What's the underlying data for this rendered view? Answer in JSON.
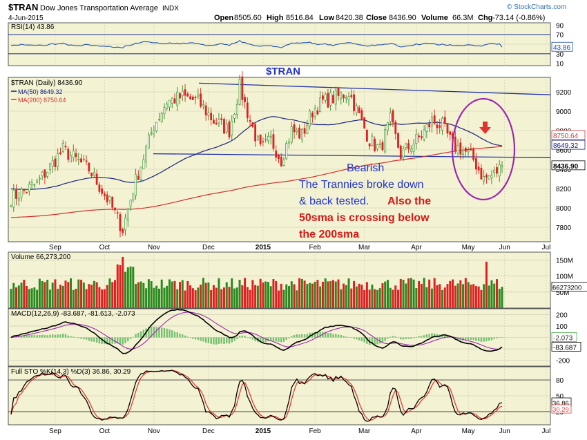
{
  "header": {
    "symbol": "$TRAN",
    "name": "Dow Jones Transportation Average",
    "exchange": "INDX",
    "date": "4-Jun-2015",
    "open_label": "Open",
    "open": "8505.60",
    "high_label": "High",
    "high": "8516.84",
    "low_label": "Low",
    "low": "8420.38",
    "close_label": "Close",
    "close": "8436.90",
    "volume_label": "Volume",
    "volume": "66.3M",
    "chg_label": "Chg",
    "chg": "-73.14 (-0.86%)",
    "watermark": "© StockCharts.com"
  },
  "colors": {
    "up": "#2a8a1f",
    "down": "#e02020",
    "ma50": "#1a237e",
    "ma200": "#d32f2f",
    "trend": "#1f2fa8",
    "rsi": "#1e4fb0",
    "macd": "#000000",
    "signal": "#9c27b0",
    "hist": "#4caf50",
    "stoK": "#000000",
    "stoD": "#e53935",
    "annot_blue": "#2233cc",
    "annot_red": "#d61a1a",
    "ellipse": "#9c27b0",
    "panel_bg": "#f3f2d2",
    "grid": "#c8c8b0"
  },
  "rsi_panel": {
    "legend": "RSI(14) 43.86",
    "axis_ticks": [
      "90",
      "70",
      "50",
      "30",
      "10"
    ],
    "current_tag": "43.86"
  },
  "price_panel": {
    "legend_symbol": "$TRAN (Daily) 8436.90",
    "legend_ma50": "MA(50) 8649.32",
    "legend_ma200": "MA(200) 8750.64",
    "title_annotation": "$TRAN",
    "axis_ticks": [
      "9200",
      "9000",
      "8800",
      "8600",
      "8400",
      "8200",
      "8000",
      "7800"
    ],
    "tags": {
      "ma200": "8750.64",
      "ma50": "8649.32",
      "close": "8436.90"
    }
  },
  "annotation": {
    "line1": "Bearish",
    "line2": "The Trannies broke down",
    "line3a": "& back tested. ",
    "line3b": "Also the",
    "line4": "50sma is crossing below",
    "line5": "the 200sma"
  },
  "volume_panel": {
    "legend": "Volume 66,273,200",
    "axis_ticks": [
      "150M",
      "100M",
      "50M"
    ],
    "current_tag": "66273200"
  },
  "macd_panel": {
    "legend": "MACD(12,26,9) -83.687, -81.613, -2.073",
    "axis_ticks": [
      "200",
      "100",
      "0",
      "-100",
      "-200"
    ],
    "tags": {
      "hist": "-2.073",
      "macd": "-83.687"
    }
  },
  "sto_panel": {
    "legend": "Full STO %K(14,3) %D(3) 36.86, 30.29",
    "axis_ticks": [
      "80",
      "50",
      "20"
    ],
    "tags": {
      "k": "36.86",
      "d": "30.29"
    }
  },
  "x_axis": {
    "price_labels": [
      "Sep",
      "Oct",
      "Nov",
      "Dec",
      "2015",
      "Feb",
      "Mar",
      "Apr",
      "May",
      "Jun",
      "Jul"
    ],
    "bottom_labels": [
      "Sep",
      "Oct",
      "Nov",
      "Dec",
      "2015",
      "Feb",
      "Mar",
      "Apr",
      "May",
      "Jun",
      "Jul"
    ]
  },
  "chart_data": {
    "type": "line",
    "title": "$TRAN Dow Jones Transportation Average INDX",
    "price_series_monthly_approx": [
      {
        "label": "Sep",
        "value": 8450
      },
      {
        "label": "Oct",
        "value": 7700
      },
      {
        "label": "Nov",
        "value": 8800
      },
      {
        "label": "Dec",
        "value": 9050
      },
      {
        "label": "2015",
        "value": 8650
      },
      {
        "label": "Feb",
        "value": 8900
      },
      {
        "label": "Mar",
        "value": 9150
      },
      {
        "label": "Apr",
        "value": 8650
      },
      {
        "label": "May",
        "value": 8850
      },
      {
        "label": "Jun",
        "value": 8436.9
      }
    ],
    "price_range": [
      7650,
      9350
    ],
    "ma50_current": 8649.32,
    "ma200_current": 8750.64,
    "resistance_line": [
      9290,
      9170
    ],
    "support_line": [
      8560,
      8520
    ],
    "rsi_current": 43.86,
    "volume_current": 66273200,
    "macd": {
      "macd": -83.687,
      "signal": -81.613,
      "hist": -2.073
    },
    "stochastic": {
      "k": 36.86,
      "d": 30.29
    }
  }
}
